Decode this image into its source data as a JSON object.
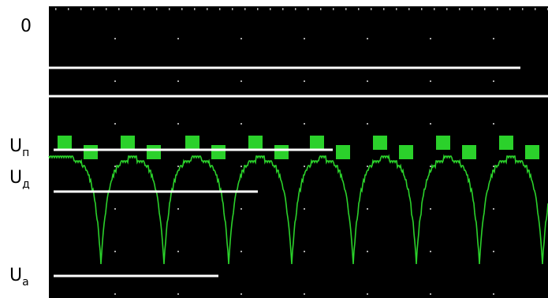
{
  "labels": {
    "zero": "0",
    "u_p": {
      "base": "U",
      "sub": "п"
    },
    "u_d": {
      "base": "U",
      "sub": "д"
    },
    "u_a": {
      "base": "U",
      "sub": "а"
    }
  }
}
